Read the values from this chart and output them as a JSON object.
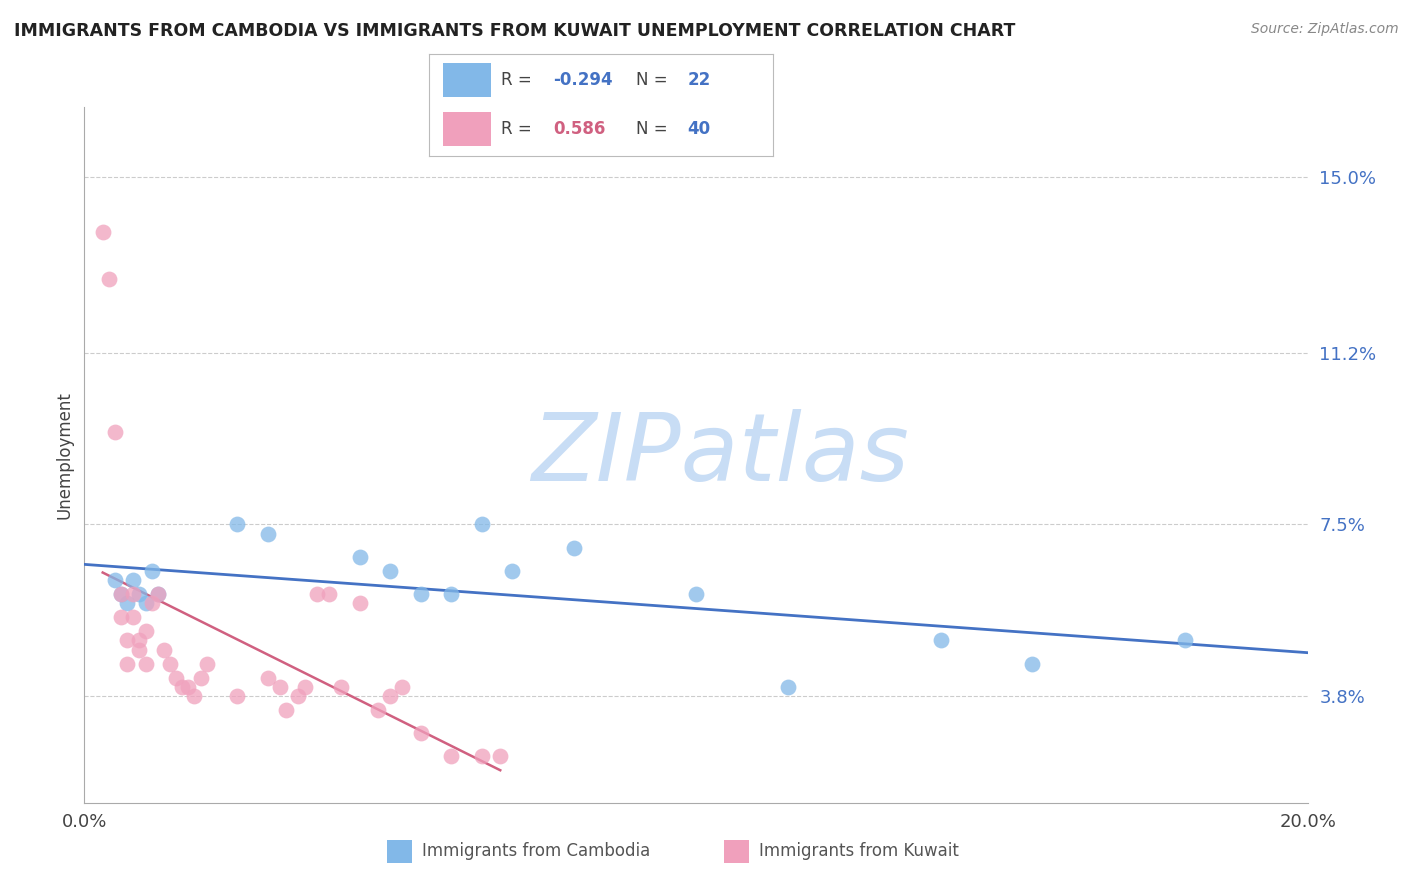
{
  "title": "IMMIGRANTS FROM CAMBODIA VS IMMIGRANTS FROM KUWAIT UNEMPLOYMENT CORRELATION CHART",
  "source_text": "Source: ZipAtlas.com",
  "ylabel": "Unemployment",
  "xlim": [
    0.0,
    0.2
  ],
  "ylim": [
    0.015,
    0.165
  ],
  "ytick_vals": [
    0.038,
    0.075,
    0.112,
    0.15
  ],
  "ytick_labels": [
    "3.8%",
    "7.5%",
    "11.2%",
    "15.0%"
  ],
  "grid_color": "#cccccc",
  "watermark_text": "ZIPatlas",
  "watermark_color": "#c8ddf5",
  "legend_R1": "-0.294",
  "legend_N1": "22",
  "legend_R2": "0.586",
  "legend_N2": "40",
  "cambodia_color": "#82b8e8",
  "kuwait_color": "#f0a0bc",
  "cambodia_line_color": "#4472c4",
  "kuwait_line_color": "#d06080",
  "cambodia_label": "Immigrants from Cambodia",
  "kuwait_label": "Immigrants from Kuwait",
  "cambodia_scatter_x": [
    0.005,
    0.006,
    0.007,
    0.008,
    0.009,
    0.01,
    0.011,
    0.012,
    0.025,
    0.03,
    0.045,
    0.05,
    0.055,
    0.06,
    0.065,
    0.07,
    0.08,
    0.1,
    0.115,
    0.14,
    0.155,
    0.18
  ],
  "cambodia_scatter_y": [
    0.063,
    0.06,
    0.058,
    0.063,
    0.06,
    0.058,
    0.065,
    0.06,
    0.075,
    0.073,
    0.068,
    0.065,
    0.06,
    0.06,
    0.075,
    0.065,
    0.07,
    0.06,
    0.04,
    0.05,
    0.045,
    0.05
  ],
  "kuwait_scatter_x": [
    0.003,
    0.004,
    0.005,
    0.006,
    0.006,
    0.007,
    0.007,
    0.008,
    0.008,
    0.009,
    0.009,
    0.01,
    0.01,
    0.011,
    0.012,
    0.013,
    0.014,
    0.015,
    0.016,
    0.017,
    0.018,
    0.019,
    0.02,
    0.025,
    0.03,
    0.032,
    0.033,
    0.035,
    0.036,
    0.038,
    0.04,
    0.042,
    0.045,
    0.048,
    0.05,
    0.052,
    0.055,
    0.06,
    0.065,
    0.068
  ],
  "kuwait_scatter_y": [
    0.138,
    0.128,
    0.095,
    0.06,
    0.055,
    0.045,
    0.05,
    0.055,
    0.06,
    0.048,
    0.05,
    0.052,
    0.045,
    0.058,
    0.06,
    0.048,
    0.045,
    0.042,
    0.04,
    0.04,
    0.038,
    0.042,
    0.045,
    0.038,
    0.042,
    0.04,
    0.035,
    0.038,
    0.04,
    0.06,
    0.06,
    0.04,
    0.058,
    0.035,
    0.038,
    0.04,
    0.03,
    0.025,
    0.025,
    0.025
  ]
}
